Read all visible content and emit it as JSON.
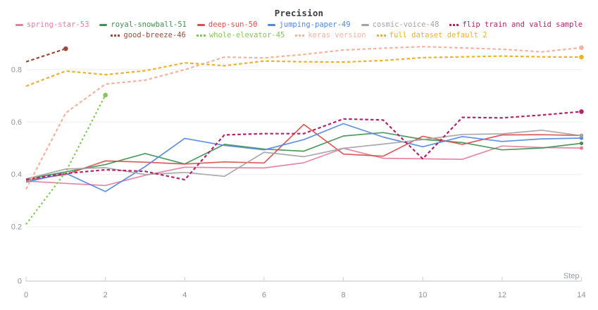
{
  "title": "Precision",
  "axis": {
    "x_label": "Step",
    "x_ticks": [
      0,
      2,
      4,
      6,
      8,
      10,
      12,
      14
    ],
    "y_ticks": [
      0.8,
      0.6,
      0.4,
      0.2,
      0
    ]
  },
  "chart_data": {
    "type": "line",
    "title": "Precision",
    "xlabel": "Step",
    "ylabel": "",
    "xlim": [
      0,
      14
    ],
    "ylim": [
      0,
      0.9
    ],
    "grid": "horizontal-only",
    "legend_position": "top-two-centered-rows",
    "x": [
      0,
      1,
      2,
      3,
      4,
      5,
      6,
      7,
      8,
      9,
      10,
      11,
      12,
      13,
      14
    ],
    "series": [
      {
        "id": "spring-star-53",
        "name": "spring-star-53",
        "color": "#E57D9D",
        "dash": "solid",
        "legend_row": 1,
        "end_dot": true,
        "values": [
          0.375,
          0.366,
          0.358,
          0.397,
          0.428,
          0.426,
          0.425,
          0.445,
          0.5,
          0.462,
          0.46,
          0.458,
          0.509,
          0.503,
          0.501
        ]
      },
      {
        "id": "royal-snowball-51",
        "name": "royal-snowball-51",
        "color": "#3F9151",
        "dash": "solid",
        "legend_row": 1,
        "end_dot": true,
        "values": [
          0.383,
          0.41,
          0.438,
          0.48,
          0.44,
          0.515,
          0.497,
          0.489,
          0.547,
          0.56,
          0.534,
          0.522,
          0.494,
          0.501,
          0.519
        ]
      },
      {
        "id": "deep-sun-50",
        "name": "deep-sun-50",
        "color": "#DA4C4C",
        "dash": "solid",
        "legend_row": 1,
        "end_dot": true,
        "values": [
          0.378,
          0.4,
          0.452,
          0.447,
          0.44,
          0.448,
          0.444,
          0.591,
          0.478,
          0.47,
          0.546,
          0.515,
          0.551,
          0.552,
          0.549
        ]
      },
      {
        "id": "jumping-paper-49",
        "name": "jumping-paper-49",
        "color": "#5387DD",
        "dash": "solid",
        "legend_row": 1,
        "end_dot": true,
        "values": [
          0.371,
          0.405,
          0.335,
          0.43,
          0.538,
          0.511,
          0.494,
          0.533,
          0.594,
          0.543,
          0.506,
          0.545,
          0.526,
          0.536,
          0.539
        ]
      },
      {
        "id": "cosmic-voice-48",
        "name": "cosmic-voice-48",
        "color": "#A3A3A3",
        "dash": "solid",
        "legend_row": 1,
        "end_dot": true,
        "values": [
          0.383,
          0.421,
          0.426,
          0.4,
          0.408,
          0.393,
          0.485,
          0.468,
          0.5,
          0.516,
          0.533,
          0.553,
          0.555,
          0.569,
          0.548
        ]
      },
      {
        "id": "flip-train-and-valid-sample",
        "name": "flip train and valid sample",
        "color": "#B2246C",
        "dash": "dashed",
        "legend_row": 1,
        "end_dot": true,
        "values": [
          0.381,
          0.404,
          0.418,
          0.412,
          0.38,
          0.551,
          0.556,
          0.556,
          0.612,
          0.608,
          0.46,
          0.618,
          0.616,
          0.627,
          0.64
        ]
      },
      {
        "id": "good-breeze-46",
        "name": "good-breeze-46",
        "color": "#9D4A37",
        "dash": "dashed",
        "legend_row": 2,
        "end_dot": true,
        "steps": [
          0,
          1
        ],
        "values": [
          0.83,
          0.88
        ]
      },
      {
        "id": "whole-elevator-45",
        "name": "whole-elevator-45",
        "color": "#84C55B",
        "dash": "dotted",
        "legend_row": 2,
        "end_dot": true,
        "steps": [
          0,
          1,
          2
        ],
        "values": [
          0.21,
          0.41,
          0.703
        ]
      },
      {
        "id": "keras-version",
        "name": "keras version",
        "color": "#F2B3A0",
        "dash": "dashed",
        "legend_row": 2,
        "end_dot": true,
        "values": [
          0.344,
          0.635,
          0.745,
          0.76,
          0.8,
          0.848,
          0.845,
          0.858,
          0.875,
          0.882,
          0.888,
          0.883,
          0.878,
          0.868,
          0.884
        ]
      },
      {
        "id": "full-dataset-default-2",
        "name": "full dataset default 2",
        "color": "#ECB22E",
        "dash": "dashed",
        "legend_row": 2,
        "end_dot": true,
        "values": [
          0.737,
          0.795,
          0.781,
          0.796,
          0.826,
          0.815,
          0.833,
          0.83,
          0.829,
          0.835,
          0.846,
          0.849,
          0.852,
          0.849,
          0.848
        ]
      }
    ]
  },
  "colors": {
    "title_text": "#3a3d42",
    "tick_text": "#8d929b",
    "gridline": "#ededed",
    "axis_line": "#d4d6d9",
    "tick_mark": "#d4d6d9",
    "background": "#ffffff"
  }
}
